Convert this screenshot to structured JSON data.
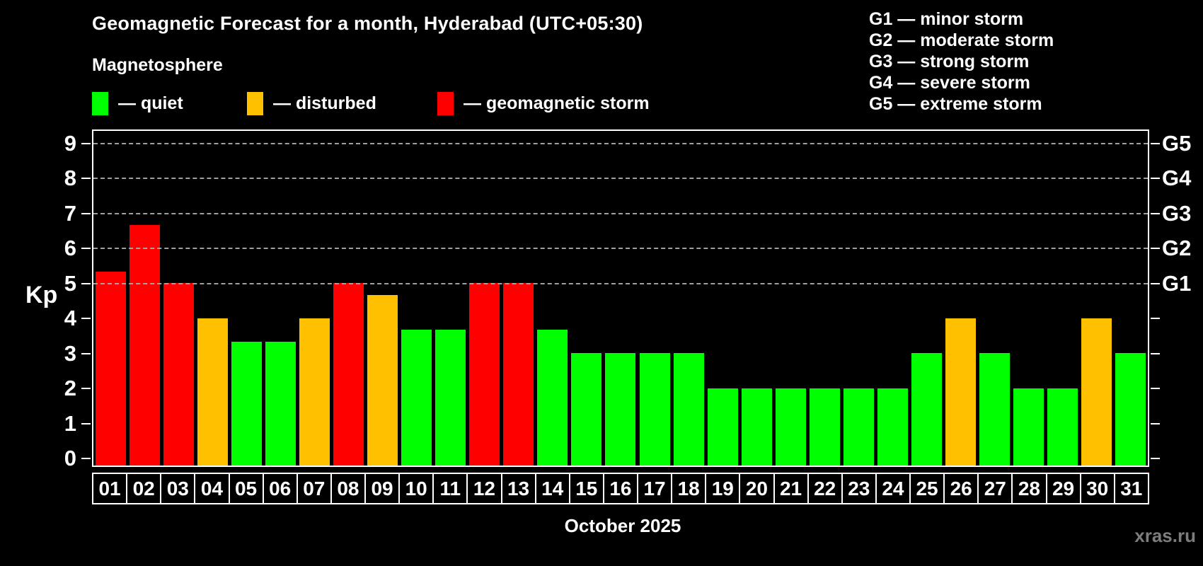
{
  "title": "Geomagnetic Forecast for a month, Hyderabad (UTC+05:30)",
  "subtitle": "Magnetosphere",
  "legend": {
    "quiet_label": "— quiet",
    "disturbed_label": "— disturbed",
    "storm_label": "— geomagnetic storm"
  },
  "g_legend": [
    "G1 — minor storm",
    "G2 — moderate storm",
    "G3 — strong storm",
    "G4 — severe storm",
    "G5 — extreme storm"
  ],
  "axis": {
    "kp_label": "Kp",
    "y_tick_labels": [
      "0",
      "1",
      "2",
      "3",
      "4",
      "5",
      "6",
      "7",
      "8",
      "9"
    ],
    "g_tick_labels": {
      "5": "G1",
      "6": "G2",
      "7": "G3",
      "8": "G4",
      "9": "G5"
    }
  },
  "x_title": "October 2025",
  "watermark": "xras.ru",
  "colors": {
    "quiet": "#00ff00",
    "disturbed": "#ffc000",
    "storm": "#ff0000",
    "gridline": "#a8a8a8",
    "frame": "#ffffff",
    "watermark": "#7d7d7d"
  },
  "chart_data": {
    "type": "bar",
    "title": "Geomagnetic Forecast for a month, Hyderabad (UTC+05:30)",
    "xlabel": "October 2025",
    "ylabel": "Kp",
    "ylim": [
      0,
      9
    ],
    "grid_levels": [
      5,
      6,
      7,
      8,
      9
    ],
    "legend_position": "top",
    "categories": [
      "01",
      "02",
      "03",
      "04",
      "05",
      "06",
      "07",
      "08",
      "09",
      "10",
      "11",
      "12",
      "13",
      "14",
      "15",
      "16",
      "17",
      "18",
      "19",
      "20",
      "21",
      "22",
      "23",
      "24",
      "25",
      "26",
      "27",
      "28",
      "29",
      "30",
      "31"
    ],
    "values": [
      5.33,
      6.67,
      5,
      4,
      3.33,
      3.33,
      4,
      5,
      4.67,
      3.67,
      3.67,
      5,
      5,
      3.67,
      3,
      3,
      3,
      3,
      2,
      2,
      2,
      2,
      2,
      2,
      3,
      4,
      3,
      2,
      2,
      4,
      3
    ],
    "status": [
      "storm",
      "storm",
      "storm",
      "disturbed",
      "quiet",
      "quiet",
      "disturbed",
      "storm",
      "disturbed",
      "quiet",
      "quiet",
      "storm",
      "storm",
      "quiet",
      "quiet",
      "quiet",
      "quiet",
      "quiet",
      "quiet",
      "quiet",
      "quiet",
      "quiet",
      "quiet",
      "quiet",
      "quiet",
      "disturbed",
      "quiet",
      "quiet",
      "quiet",
      "disturbed",
      "quiet"
    ]
  }
}
